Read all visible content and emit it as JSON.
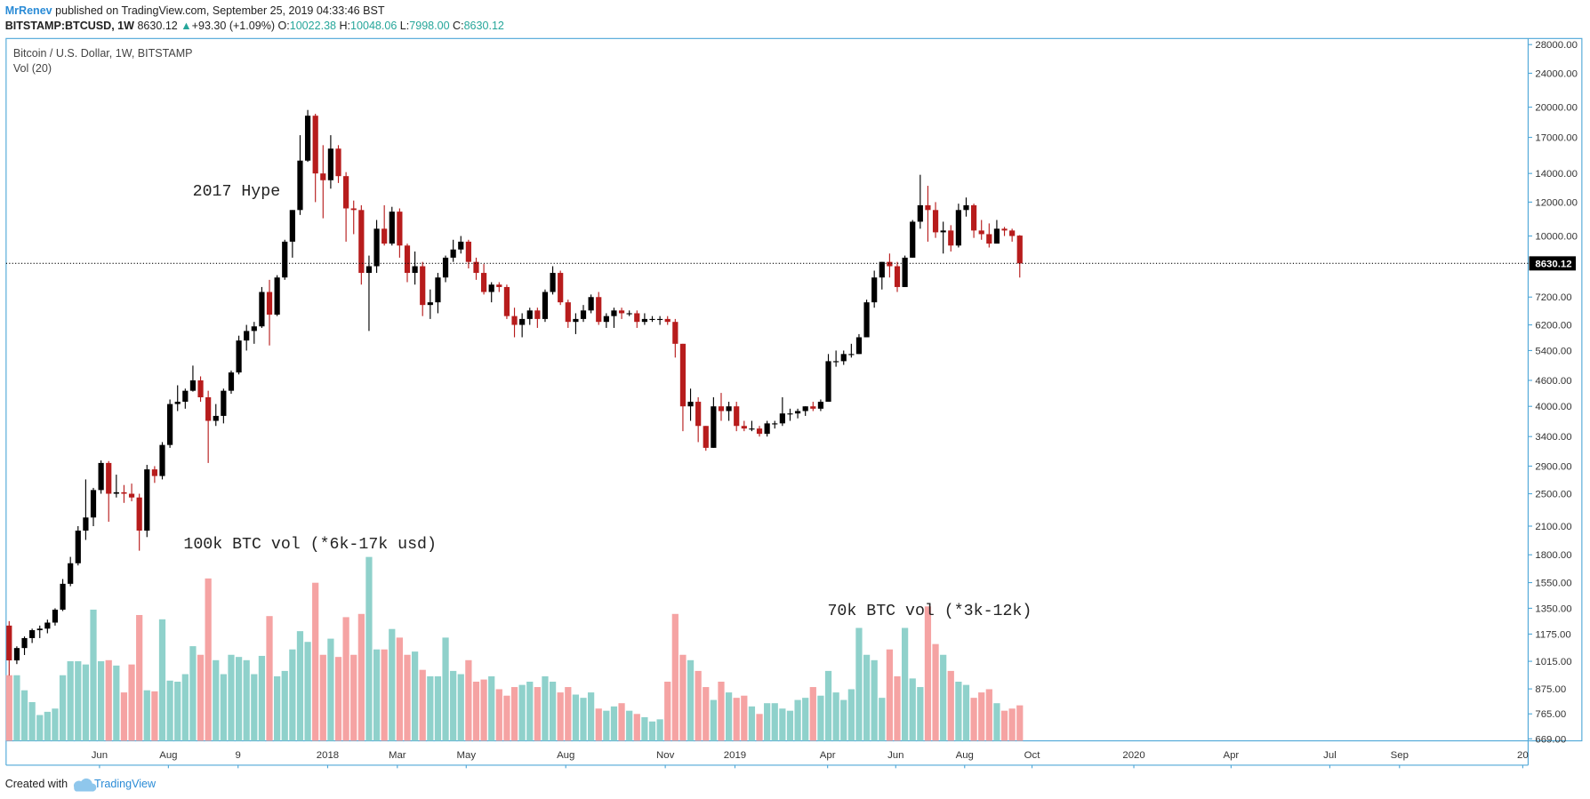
{
  "header": {
    "author": "MrRenev",
    "published": "published on TradingView.com, September 25, 2019 04:33:46 BST",
    "symbol": "BITSTAMP:BTCUSD, 1W",
    "last": "8630.12",
    "arrow": "▲",
    "change": "+93.30 (+1.09%)",
    "o_label": "O:",
    "o_value": "10022.38",
    "h_label": "H:",
    "h_value": "10048.06",
    "l_label": "L:",
    "l_value": "7998.00",
    "c_label": "C:",
    "c_value": "8630.12"
  },
  "footer": {
    "text": "Created with",
    "brand": "TradingView"
  },
  "chart_data": {
    "type": "candlestick",
    "title": "Bitcoin / U.S. Dollar, 1W, BITSTAMP",
    "volume_label": "Vol (20)",
    "annotations": [
      "2017 Hype",
      "100k BTC vol (*6k-17k usd)",
      "70k BTC vol (*3k-12k)"
    ],
    "log_scale": true,
    "up_color": "#000000",
    "down_color": "#b71c1c",
    "vol_up_color": "#8fd1cb",
    "vol_down_color": "#f5a3a3",
    "xlim": [
      -0.4,
      198.4
    ],
    "xticks": [
      {
        "value": 11.8,
        "label": "Jun"
      },
      {
        "value": 20.8,
        "label": "Aug"
      },
      {
        "value": 29.9,
        "label": "9"
      },
      {
        "value": 41.6,
        "label": "2018"
      },
      {
        "value": 50.7,
        "label": "Mar"
      },
      {
        "value": 59.7,
        "label": "May"
      },
      {
        "value": 72.7,
        "label": "Aug"
      },
      {
        "value": 85.7,
        "label": "Nov"
      },
      {
        "value": 94.8,
        "label": "2019"
      },
      {
        "value": 106.9,
        "label": "Apr"
      },
      {
        "value": 115.8,
        "label": "Jun"
      },
      {
        "value": 124.8,
        "label": "Aug"
      },
      {
        "value": 133.6,
        "label": "Oct"
      },
      {
        "value": 146.9,
        "label": "2020"
      },
      {
        "value": 159.6,
        "label": "Apr"
      },
      {
        "value": 172.5,
        "label": "Jul"
      },
      {
        "value": 181.6,
        "label": "Sep"
      },
      {
        "value": 197.7,
        "label": "20"
      }
    ],
    "ylim": [
      669,
      28000
    ],
    "yticks": [
      {
        "value": 28000,
        "label": "28000.00"
      },
      {
        "value": 24000,
        "label": "24000.00"
      },
      {
        "value": 20000,
        "label": "20000.00"
      },
      {
        "value": 17000,
        "label": "17000.00"
      },
      {
        "value": 14000,
        "label": "14000.00"
      },
      {
        "value": 12000,
        "label": "12000.00"
      },
      {
        "value": 10000,
        "label": "10000.00"
      },
      {
        "value": 7200,
        "label": "7200.00"
      },
      {
        "value": 6200,
        "label": "6200.00"
      },
      {
        "value": 5400,
        "label": "5400.00"
      },
      {
        "value": 4600,
        "label": "4600.00"
      },
      {
        "value": 4000,
        "label": "4000.00"
      },
      {
        "value": 3400,
        "label": "3400.00"
      },
      {
        "value": 2900,
        "label": "2900.00"
      },
      {
        "value": 2500,
        "label": "2500.00"
      },
      {
        "value": 2100,
        "label": "2100.00"
      },
      {
        "value": 1800,
        "label": "1800.00"
      },
      {
        "value": 1550,
        "label": "1550.00"
      },
      {
        "value": 1350,
        "label": "1350.00"
      },
      {
        "value": 1175,
        "label": "1175.00"
      },
      {
        "value": 1015,
        "label": "1015.00"
      },
      {
        "value": 875,
        "label": "875.00"
      },
      {
        "value": 765,
        "label": "765.00"
      },
      {
        "value": 669,
        "label": "669.00"
      }
    ],
    "volume_ylim": [
      0,
      180
    ],
    "ohlc": [
      [
        1230,
        1260,
        940,
        1020
      ],
      [
        1020,
        1100,
        1000,
        1090
      ],
      [
        1090,
        1160,
        1050,
        1150
      ],
      [
        1150,
        1210,
        1120,
        1200
      ],
      [
        1200,
        1230,
        1150,
        1210
      ],
      [
        1210,
        1270,
        1180,
        1250
      ],
      [
        1250,
        1350,
        1230,
        1340
      ],
      [
        1340,
        1580,
        1330,
        1540
      ],
      [
        1540,
        1780,
        1520,
        1720
      ],
      [
        1720,
        2100,
        1700,
        2050
      ],
      [
        2050,
        2700,
        1950,
        2200
      ],
      [
        2200,
        2580,
        2100,
        2550
      ],
      [
        2550,
        2990,
        2500,
        2950
      ],
      [
        2950,
        2980,
        2150,
        2500
      ],
      [
        2500,
        2770,
        2450,
        2520
      ],
      [
        2520,
        2620,
        2380,
        2500
      ],
      [
        2500,
        2640,
        2400,
        2450
      ],
      [
        2450,
        2500,
        1840,
        2050
      ],
      [
        2050,
        2920,
        1980,
        2850
      ],
      [
        2850,
        2900,
        2650,
        2750
      ],
      [
        2750,
        3300,
        2700,
        3250
      ],
      [
        3250,
        4150,
        3200,
        4050
      ],
      [
        4050,
        4480,
        3900,
        4100
      ],
      [
        4100,
        4400,
        3950,
        4350
      ],
      [
        4350,
        4980,
        4330,
        4600
      ],
      [
        4600,
        4700,
        4100,
        4200
      ],
      [
        4200,
        4350,
        2950,
        3700
      ],
      [
        3700,
        4050,
        3600,
        3800
      ],
      [
        3800,
        4400,
        3650,
        4350
      ],
      [
        4350,
        4850,
        4280,
        4800
      ],
      [
        4800,
        5850,
        4750,
        5700
      ],
      [
        5700,
        6200,
        5400,
        6000
      ],
      [
        6000,
        6300,
        5600,
        6150
      ],
      [
        6150,
        7600,
        6100,
        7400
      ],
      [
        7400,
        7900,
        5550,
        6550
      ],
      [
        6550,
        8100,
        6500,
        8000
      ],
      [
        8000,
        9800,
        7900,
        9700
      ],
      [
        9700,
        11500,
        8900,
        11500
      ],
      [
        11500,
        17200,
        11200,
        15000
      ],
      [
        15000,
        19700,
        14900,
        19100
      ],
      [
        19100,
        19300,
        12000,
        14000
      ],
      [
        14000,
        16300,
        11000,
        13500
      ],
      [
        13500,
        17200,
        12900,
        16000
      ],
      [
        16000,
        16300,
        13300,
        13800
      ],
      [
        13800,
        14100,
        9700,
        11600
      ],
      [
        11600,
        12100,
        10100,
        11500
      ],
      [
        11500,
        11800,
        7700,
        8200
      ],
      [
        8200,
        9000,
        6000,
        8500
      ],
      [
        8500,
        10900,
        8200,
        10400
      ],
      [
        10400,
        11800,
        9500,
        9600
      ],
      [
        9600,
        11700,
        9500,
        11400
      ],
      [
        11400,
        11600,
        8900,
        9500
      ],
      [
        9500,
        9600,
        7800,
        8200
      ],
      [
        8200,
        9200,
        7700,
        8500
      ],
      [
        8500,
        8700,
        6500,
        6900
      ],
      [
        6900,
        7500,
        6400,
        7000
      ],
      [
        7000,
        8200,
        6600,
        8000
      ],
      [
        8000,
        9000,
        7800,
        8900
      ],
      [
        8900,
        9800,
        8700,
        9300
      ],
      [
        9300,
        10000,
        9100,
        9700
      ],
      [
        9700,
        9800,
        8400,
        8700
      ],
      [
        8700,
        8900,
        7900,
        8200
      ],
      [
        8200,
        8600,
        7300,
        7400
      ],
      [
        7400,
        7800,
        7000,
        7700
      ],
      [
        7700,
        7800,
        7400,
        7600
      ],
      [
        7600,
        7700,
        6400,
        6500
      ],
      [
        6500,
        6800,
        5800,
        6200
      ],
      [
        6200,
        6600,
        5800,
        6400
      ],
      [
        6400,
        6800,
        6200,
        6700
      ],
      [
        6700,
        6800,
        6100,
        6400
      ],
      [
        6400,
        7500,
        6300,
        7400
      ],
      [
        7400,
        8500,
        7300,
        8200
      ],
      [
        8200,
        8300,
        6900,
        7000
      ],
      [
        7000,
        7100,
        6100,
        6300
      ],
      [
        6300,
        6600,
        5900,
        6400
      ],
      [
        6400,
        6900,
        6300,
        6700
      ],
      [
        6700,
        7300,
        6600,
        7200
      ],
      [
        7200,
        7400,
        6200,
        6300
      ],
      [
        6300,
        6600,
        6100,
        6500
      ],
      [
        6500,
        6800,
        6100,
        6700
      ],
      [
        6700,
        6800,
        6400,
        6600
      ],
      [
        6600,
        6700,
        6500,
        6600
      ],
      [
        6600,
        6700,
        6100,
        6300
      ],
      [
        6300,
        6600,
        6200,
        6400
      ],
      [
        6400,
        6500,
        6300,
        6400
      ],
      [
        6400,
        6500,
        6200,
        6400
      ],
      [
        6400,
        6500,
        6200,
        6300
      ],
      [
        6300,
        6400,
        5200,
        5600
      ],
      [
        5600,
        5600,
        3500,
        4000
      ],
      [
        4000,
        4400,
        3700,
        4100
      ],
      [
        4100,
        4200,
        3300,
        3600
      ],
      [
        3600,
        3600,
        3150,
        3200
      ],
      [
        3200,
        4200,
        3200,
        4000
      ],
      [
        4000,
        4300,
        3700,
        3900
      ],
      [
        3900,
        4100,
        3700,
        4000
      ],
      [
        4000,
        4100,
        3500,
        3600
      ],
      [
        3600,
        3700,
        3500,
        3550
      ],
      [
        3550,
        3700,
        3500,
        3550
      ],
      [
        3550,
        3600,
        3400,
        3450
      ],
      [
        3450,
        3700,
        3400,
        3650
      ],
      [
        3650,
        3700,
        3550,
        3650
      ],
      [
        3650,
        4200,
        3600,
        3850
      ],
      [
        3850,
        3950,
        3700,
        3850
      ],
      [
        3850,
        3950,
        3750,
        3900
      ],
      [
        3900,
        4000,
        3800,
        4000
      ],
      [
        4000,
        4100,
        3900,
        3950
      ],
      [
        3950,
        4150,
        3900,
        4100
      ],
      [
        4100,
        5300,
        4100,
        5100
      ],
      [
        5100,
        5400,
        4950,
        5100
      ],
      [
        5100,
        5400,
        5000,
        5300
      ],
      [
        5300,
        5600,
        5200,
        5300
      ],
      [
        5300,
        5900,
        5300,
        5800
      ],
      [
        5800,
        7100,
        5800,
        7000
      ],
      [
        7000,
        8300,
        6800,
        8000
      ],
      [
        8000,
        8700,
        7500,
        8700
      ],
      [
        8700,
        9100,
        8000,
        8500
      ],
      [
        8500,
        8700,
        7400,
        7600
      ],
      [
        7600,
        9000,
        7600,
        8900
      ],
      [
        8900,
        10900,
        8900,
        10800
      ],
      [
        10800,
        13900,
        10400,
        11800
      ],
      [
        11800,
        13100,
        9700,
        11500
      ],
      [
        11500,
        12000,
        9900,
        10200
      ],
      [
        10200,
        10800,
        9100,
        10300
      ],
      [
        10300,
        10600,
        9200,
        9500
      ],
      [
        9500,
        11900,
        9400,
        11500
      ],
      [
        11500,
        12300,
        11100,
        11800
      ],
      [
        11800,
        11900,
        9900,
        10300
      ],
      [
        10300,
        10900,
        9800,
        10100
      ],
      [
        10100,
        10700,
        9400,
        9600
      ],
      [
        9600,
        10900,
        9600,
        10400
      ],
      [
        10400,
        10500,
        10000,
        10300
      ],
      [
        10300,
        10400,
        9700,
        10000
      ],
      [
        10022.38,
        10048.06,
        7998,
        8630.12
      ]
    ],
    "volume": [
      61,
      61,
      47,
      36,
      24,
      27,
      30,
      61,
      74,
      74,
      71,
      122,
      74,
      75,
      70,
      45,
      71,
      117,
      47,
      46,
      113,
      56,
      55,
      62,
      88,
      80,
      151,
      75,
      62,
      80,
      78,
      75,
      62,
      79,
      116,
      60,
      65,
      85,
      102,
      92,
      147,
      80,
      95,
      78,
      115,
      80,
      118,
      171,
      85,
      85,
      104,
      96,
      80,
      83,
      66,
      60,
      60,
      96,
      65,
      62,
      75,
      55,
      57,
      60,
      48,
      42,
      50,
      52,
      55,
      50,
      60,
      55,
      45,
      50,
      43,
      40,
      45,
      30,
      28,
      32,
      35,
      28,
      25,
      22,
      18,
      20,
      55,
      118,
      80,
      75,
      65,
      50,
      38,
      55,
      45,
      40,
      42,
      32,
      25,
      35,
      35,
      30,
      28,
      38,
      40,
      50,
      42,
      65,
      45,
      38,
      48,
      105,
      80,
      75,
      40,
      85,
      60,
      105,
      58,
      50,
      125,
      90,
      80,
      65,
      55,
      52,
      40,
      45,
      48,
      35,
      28,
      30,
      33
    ]
  }
}
